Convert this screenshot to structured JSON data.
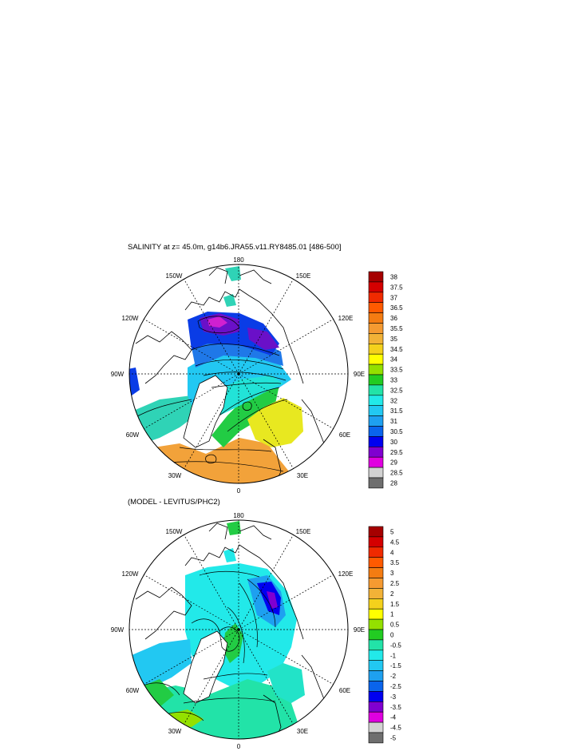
{
  "panels": [
    {
      "title": "SALINITY at z=  45.0m, g14b6.JRA55.v11.RY8485.01 [486-500]",
      "lon_labels": {
        "l180": "180",
        "l150w": "150W",
        "l150e": "150E",
        "l120w": "120W",
        "l120e": "120E",
        "l90w": "90W",
        "l90e": "90E",
        "l60w": "60W",
        "l60e": "60E",
        "l30w": "30W",
        "l30e": "30E",
        "l0": "0"
      },
      "colorbar": {
        "levels": [
          "38",
          "37.5",
          "37",
          "36.5",
          "36",
          "35.5",
          "35",
          "34.5",
          "34",
          "33.5",
          "33",
          "32.5",
          "32",
          "31.5",
          "31",
          "30.5",
          "30",
          "29.5",
          "29",
          "28.5",
          "28"
        ],
        "colors": [
          "#a50000",
          "#d40000",
          "#f02a00",
          "#ff5a00",
          "#f47c12",
          "#f59a31",
          "#f2b237",
          "#f4d11c",
          "#ffff00",
          "#94e000",
          "#22cc22",
          "#22e3a8",
          "#22e9e9",
          "#22c8f2",
          "#1ea0f0",
          "#0a64ec",
          "#0000f0",
          "#8000d0",
          "#e000e0",
          "#d2d2d2",
          "#6e6e6e"
        ]
      },
      "colors": {
        "land": "#ffffff",
        "north_pacific": "#2fd3b6",
        "cbb": "#0a3ce6",
        "cbb_core": "#6a10c8",
        "cbb_min": "#d020d0",
        "eurasian": "#1f78e8",
        "central": "#22c8f2",
        "transpolar": "#22e3d8",
        "greenland_sea": "#22cc44",
        "barents": "#e8e820",
        "atlantic": "#f2a23a",
        "labrador": "#1ea0f0"
      }
    },
    {
      "title": "(MODEL - LEVITUS/PHC2)",
      "lon_labels": {
        "l180": "180",
        "l150w": "150W",
        "l150e": "150E",
        "l120w": "120W",
        "l120e": "120E",
        "l90w": "90W",
        "l90e": "90E",
        "l60w": "60W",
        "l60e": "60E",
        "l30w": "30W",
        "l30e": "30E",
        "l0": "0"
      },
      "colorbar": {
        "levels": [
          "5",
          "4.5",
          "4",
          "3.5",
          "3",
          "2.5",
          "2",
          "1.5",
          "1",
          "0.5",
          "0",
          "-0.5",
          "-1",
          "-1.5",
          "-2",
          "-2.5",
          "-3",
          "-3.5",
          "-4",
          "-4.5",
          "-5"
        ],
        "colors": [
          "#a50000",
          "#d40000",
          "#f02a00",
          "#ff5a00",
          "#f47c12",
          "#f59a31",
          "#f2b237",
          "#f4d11c",
          "#ffff00",
          "#94e000",
          "#22cc22",
          "#22e3a8",
          "#22e9e9",
          "#22c8f2",
          "#1ea0f0",
          "#0a64ec",
          "#0000f0",
          "#8000d0",
          "#e000e0",
          "#d2d2d2",
          "#6e6e6e"
        ]
      },
      "colors": {
        "land": "#ffffff",
        "base": "#22e9e9",
        "central": "#22e3c8",
        "east_siberian": "#1ea0f0",
        "east_siberian_core": "#0000f0",
        "east_siberian_min": "#8000d0",
        "greenland_sea": "#22cc44",
        "atlantic": "#22e3a8",
        "labrador": "#22c8f2",
        "barents": "#94e000"
      }
    }
  ]
}
